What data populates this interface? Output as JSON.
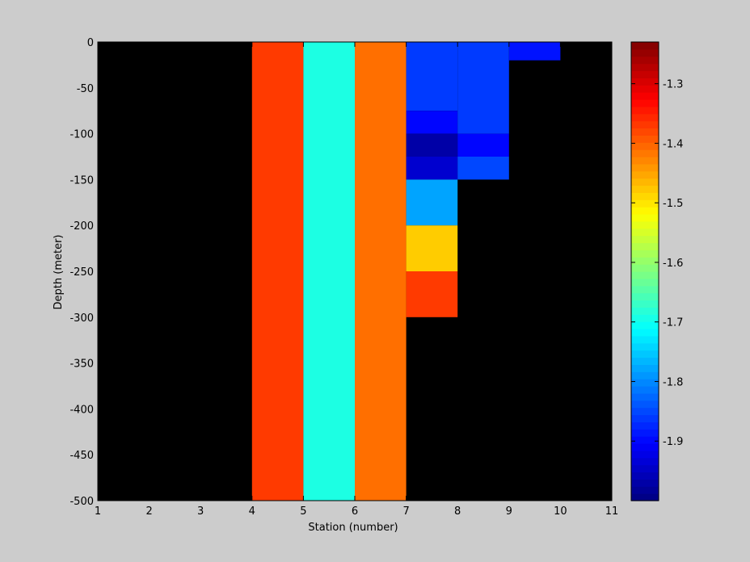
{
  "chart_data": {
    "type": "heatmap",
    "title": "",
    "xlabel": "Station (number)",
    "ylabel": "Depth (meter)",
    "xlim": [
      1,
      11
    ],
    "ylim": [
      -500,
      0
    ],
    "x_ticks": [
      1,
      2,
      3,
      4,
      5,
      6,
      7,
      8,
      9,
      10,
      11
    ],
    "x_tick_labels": [
      "1",
      "2",
      "3",
      "4",
      "5",
      "6",
      "7",
      "8",
      "9",
      "10",
      "11"
    ],
    "y_ticks": [
      0,
      -50,
      -100,
      -150,
      -200,
      -250,
      -300,
      -350,
      -400,
      -450,
      -500
    ],
    "y_tick_labels": [
      "0",
      "-50",
      "-100",
      "-150",
      "-200",
      "-250",
      "-300",
      "-350",
      "-400",
      "-450",
      "-500"
    ],
    "background_color": "#000000",
    "colormap": "jet",
    "colorbar": {
      "location": "right",
      "clim": [
        -2.0,
        -1.23
      ],
      "ticks": [
        -1.3,
        -1.4,
        -1.5,
        -1.6,
        -1.7,
        -1.8,
        -1.9
      ],
      "tick_labels": [
        "-1.3",
        "-1.4",
        "-1.5",
        "-1.6",
        "-1.7",
        "-1.8",
        "-1.9"
      ]
    },
    "cells": [
      {
        "x0": 4,
        "x1": 5,
        "y0": 0,
        "y1": -500,
        "value": -1.37
      },
      {
        "x0": 5,
        "x1": 6,
        "y0": 0,
        "y1": -500,
        "value": -1.69
      },
      {
        "x0": 6,
        "x1": 7,
        "y0": 0,
        "y1": -500,
        "value": -1.41
      },
      {
        "x0": 7,
        "x1": 8,
        "y0": 0,
        "y1": -75,
        "value": -1.86
      },
      {
        "x0": 7,
        "x1": 8,
        "y0": -75,
        "y1": -100,
        "value": -1.9
      },
      {
        "x0": 7,
        "x1": 8,
        "y0": -100,
        "y1": -125,
        "value": -1.97
      },
      {
        "x0": 7,
        "x1": 8,
        "y0": -125,
        "y1": -150,
        "value": -1.94
      },
      {
        "x0": 7,
        "x1": 8,
        "y0": -150,
        "y1": -200,
        "value": -1.78
      },
      {
        "x0": 7,
        "x1": 8,
        "y0": -200,
        "y1": -250,
        "value": -1.48
      },
      {
        "x0": 7,
        "x1": 8,
        "y0": -250,
        "y1": -300,
        "value": -1.37
      },
      {
        "x0": 8,
        "x1": 9,
        "y0": 0,
        "y1": -100,
        "value": -1.86
      },
      {
        "x0": 8,
        "x1": 9,
        "y0": -100,
        "y1": -125,
        "value": -1.9
      },
      {
        "x0": 8,
        "x1": 9,
        "y0": -125,
        "y1": -150,
        "value": -1.85
      },
      {
        "x0": 9,
        "x1": 10,
        "y0": 0,
        "y1": -20,
        "value": -1.89
      }
    ]
  }
}
